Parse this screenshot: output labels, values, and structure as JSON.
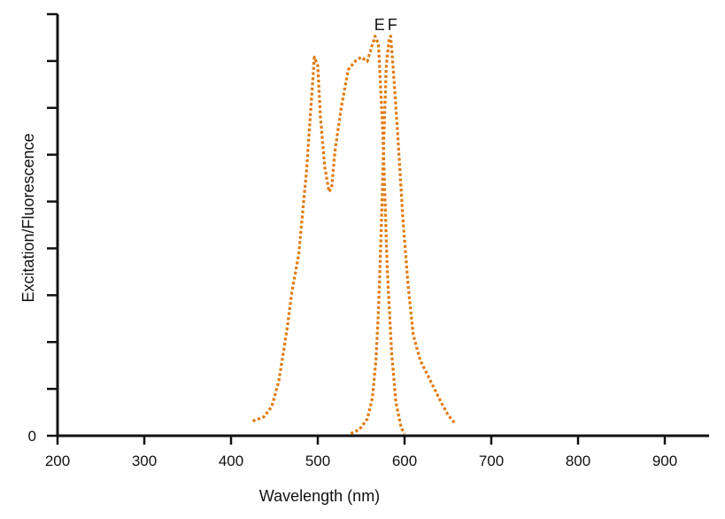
{
  "chart_data": {
    "type": "line",
    "title": "",
    "xlabel": "Wavelength (nm)",
    "ylabel": "Excitation/Fluorescence",
    "xlim": [
      200,
      950
    ],
    "ylim": [
      0,
      100
    ],
    "x_ticks": [
      200,
      300,
      400,
      500,
      600,
      700,
      800,
      900
    ],
    "x_tick_labels": [
      "200",
      "300",
      "400",
      "500",
      "600",
      "700",
      "800",
      "900"
    ],
    "y_tick_labels": [
      "0"
    ],
    "y_minor_ticks": 9,
    "grid": false,
    "legend": "none",
    "line_color": "#E07B10",
    "line_style": "dotted",
    "series": [
      {
        "label": "E",
        "points": [
          [
            425,
            3.5
          ],
          [
            438,
            4.5
          ],
          [
            447,
            7
          ],
          [
            455,
            13
          ],
          [
            462,
            22
          ],
          [
            465,
            26
          ],
          [
            470,
            34
          ],
          [
            478,
            43
          ],
          [
            487,
            63
          ],
          [
            492,
            78
          ],
          [
            496,
            90
          ],
          [
            500,
            88
          ],
          [
            503,
            76
          ],
          [
            508,
            64
          ],
          [
            513,
            58
          ],
          [
            516,
            59
          ],
          [
            520,
            68
          ],
          [
            527,
            78
          ],
          [
            535,
            87
          ],
          [
            543,
            89
          ],
          [
            550,
            90
          ],
          [
            557,
            89
          ],
          [
            563,
            93
          ],
          [
            566,
            95
          ],
          [
            570,
            93
          ],
          [
            575,
            72
          ],
          [
            580,
            40
          ],
          [
            585,
            20
          ],
          [
            590,
            8
          ],
          [
            596,
            2
          ],
          [
            600,
            0.5
          ]
        ]
      },
      {
        "label": "F",
        "points": [
          [
            538,
            0.5
          ],
          [
            548,
            1.5
          ],
          [
            557,
            4
          ],
          [
            563,
            9
          ],
          [
            567,
            18
          ],
          [
            570,
            30
          ],
          [
            573,
            48
          ],
          [
            576,
            70
          ],
          [
            579,
            88
          ],
          [
            582,
            94
          ],
          [
            584,
            95
          ],
          [
            587,
            87
          ],
          [
            592,
            72
          ],
          [
            598,
            52
          ],
          [
            604,
            36
          ],
          [
            610,
            24
          ],
          [
            618,
            18
          ],
          [
            630,
            13
          ],
          [
            642,
            8
          ],
          [
            650,
            5
          ],
          [
            658,
            3
          ]
        ]
      }
    ]
  }
}
